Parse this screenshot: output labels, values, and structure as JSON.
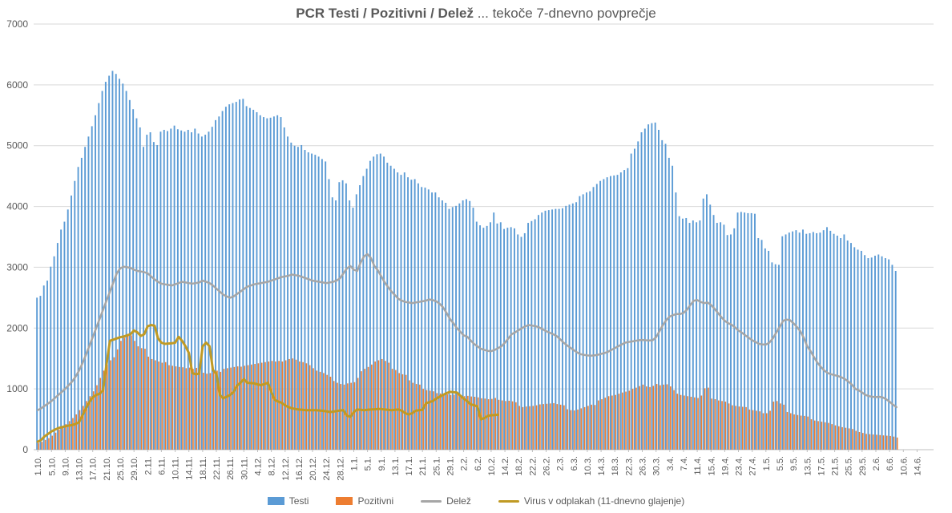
{
  "title": {
    "bold": "PCR Testi / Pozitivni / Delež",
    "regular": " ... tekoče 7-dnevno povprečje"
  },
  "chart_data": {
    "type": "combo",
    "subtype": "daily bars with moving-average lines",
    "x_start_date": "1.10.",
    "x_tick_interval_days": 4,
    "x_tick_labels": [
      "1.10.",
      "5.10.",
      "9.10.",
      "13.10.",
      "17.10.",
      "21.10.",
      "25.10.",
      "29.10.",
      "2.11.",
      "6.11.",
      "10.11.",
      "14.11.",
      "18.11.",
      "22.11.",
      "26.11.",
      "30.11.",
      "4.12.",
      "8.12.",
      "12.12.",
      "16.12.",
      "20.12.",
      "24.12.",
      "28.12.",
      "1.1.",
      "5.1.",
      "9.1.",
      "13.1.",
      "17.1.",
      "21.1.",
      "25.1.",
      "29.1.",
      "2.2.",
      "6.2.",
      "10.2.",
      "14.2.",
      "18.2.",
      "22.2.",
      "26.2.",
      "2.3.",
      "6.3.",
      "10.3.",
      "14.3.",
      "18.3.",
      "22.3.",
      "26.3.",
      "30.3.",
      "3.4.",
      "7.4.",
      "11.4.",
      "15.4.",
      "19.4.",
      "23.4.",
      "27.4.",
      "1.5.",
      "5.5.",
      "9.5.",
      "13.5.",
      "17.5.",
      "21.5.",
      "25.5.",
      "29.5.",
      "2.6.",
      "6.6.",
      "10.6.",
      "14.6."
    ],
    "y_axis": {
      "min": 0,
      "max": 7000,
      "step": 1000,
      "tick_labels": [
        "0",
        "1000",
        "2000",
        "3000",
        "4000",
        "5000",
        "6000",
        "7000"
      ]
    },
    "grid": true,
    "legend_position": "bottom",
    "colors": {
      "testi": "#5B9BD5",
      "pozitivni": "#ED7D31",
      "delez": "#A6A6A6",
      "virus": "#C09A24",
      "gridline": "#D9D9D9",
      "axis": "#BFBFBF",
      "text": "#595959"
    },
    "series": [
      {
        "name": "Testi",
        "type": "bar",
        "color": "#5B9BD5",
        "values": [
          2500,
          2530,
          2700,
          2780,
          3010,
          3180,
          3400,
          3620,
          3750,
          3950,
          4180,
          4420,
          4650,
          4800,
          4980,
          5150,
          5320,
          5500,
          5700,
          5900,
          6050,
          6150,
          6230,
          6180,
          6100,
          6020,
          5900,
          5750,
          5600,
          5450,
          5300,
          4980,
          5180,
          5220,
          5060,
          5010,
          5230,
          5260,
          5240,
          5280,
          5330,
          5270,
          5250,
          5230,
          5260,
          5220,
          5280,
          5200,
          5150,
          5180,
          5230,
          5310,
          5420,
          5480,
          5570,
          5640,
          5680,
          5700,
          5720,
          5760,
          5770,
          5650,
          5620,
          5590,
          5550,
          5500,
          5470,
          5450,
          5460,
          5480,
          5500,
          5470,
          5300,
          5150,
          5050,
          5000,
          4980,
          5010,
          4930,
          4890,
          4870,
          4850,
          4820,
          4780,
          4740,
          4450,
          4150,
          4100,
          4400,
          4430,
          4380,
          4100,
          3980,
          4200,
          4350,
          4500,
          4620,
          4750,
          4820,
          4860,
          4870,
          4820,
          4720,
          4670,
          4620,
          4560,
          4520,
          4560,
          4480,
          4440,
          4450,
          4380,
          4320,
          4310,
          4280,
          4230,
          4230,
          4150,
          4100,
          4060,
          3960,
          3990,
          4010,
          4050,
          4100,
          4120,
          4090,
          3980,
          3750,
          3690,
          3650,
          3680,
          3740,
          3900,
          3720,
          3740,
          3630,
          3650,
          3660,
          3640,
          3540,
          3500,
          3560,
          3730,
          3760,
          3790,
          3860,
          3900,
          3930,
          3940,
          3950,
          3960,
          3960,
          3970,
          4010,
          4030,
          4050,
          4070,
          4170,
          4200,
          4230,
          4250,
          4320,
          4370,
          4420,
          4450,
          4480,
          4500,
          4510,
          4520,
          4560,
          4600,
          4630,
          4870,
          4950,
          5070,
          5220,
          5280,
          5350,
          5370,
          5380,
          5260,
          5090,
          5030,
          4800,
          4670,
          4230,
          3840,
          3800,
          3810,
          3730,
          3770,
          3740,
          3770,
          4130,
          4200,
          4030,
          3860,
          3730,
          3740,
          3700,
          3530,
          3540,
          3640,
          3900,
          3910,
          3900,
          3890,
          3890,
          3880,
          3480,
          3450,
          3310,
          3270,
          3080,
          3050,
          3040,
          3510,
          3540,
          3570,
          3590,
          3610,
          3570,
          3620,
          3550,
          3560,
          3580,
          3560,
          3570,
          3610,
          3660,
          3600,
          3550,
          3520,
          3480,
          3540,
          3440,
          3400,
          3330,
          3290,
          3270,
          3200,
          3150,
          3160,
          3190,
          3210,
          3180,
          3150,
          3130,
          3040,
          2940
        ]
      },
      {
        "name": "Pozitivni",
        "type": "bar",
        "color": "#ED7D31",
        "values": [
          110,
          130,
          160,
          190,
          230,
          280,
          330,
          380,
          420,
          470,
          520,
          580,
          650,
          720,
          800,
          880,
          960,
          1060,
          1180,
          1300,
          1400,
          1470,
          1520,
          1650,
          1790,
          1840,
          1870,
          1880,
          1790,
          1700,
          1670,
          1660,
          1530,
          1490,
          1470,
          1450,
          1430,
          1440,
          1390,
          1380,
          1370,
          1360,
          1355,
          1340,
          1350,
          1330,
          1345,
          1300,
          1265,
          1250,
          1260,
          1290,
          1300,
          1280,
          1330,
          1340,
          1350,
          1360,
          1370,
          1365,
          1380,
          1390,
          1400,
          1410,
          1420,
          1430,
          1440,
          1450,
          1460,
          1450,
          1460,
          1450,
          1470,
          1490,
          1500,
          1480,
          1450,
          1440,
          1420,
          1390,
          1340,
          1300,
          1280,
          1260,
          1230,
          1200,
          1130,
          1100,
          1080,
          1070,
          1090,
          1100,
          1110,
          1180,
          1290,
          1330,
          1360,
          1400,
          1450,
          1470,
          1490,
          1460,
          1430,
          1330,
          1310,
          1260,
          1240,
          1230,
          1140,
          1100,
          1080,
          1070,
          1000,
          980,
          970,
          960,
          930,
          925,
          920,
          910,
          900,
          905,
          910,
          890,
          880,
          885,
          875,
          870,
          860,
          845,
          840,
          830,
          835,
          850,
          820,
          810,
          800,
          805,
          795,
          780,
          720,
          700,
          710,
          715,
          720,
          730,
          745,
          750,
          755,
          760,
          765,
          750,
          740,
          730,
          665,
          650,
          645,
          660,
          680,
          700,
          720,
          740,
          735,
          810,
          830,
          855,
          880,
          890,
          900,
          920,
          940,
          955,
          970,
          1000,
          1020,
          1045,
          1070,
          1040,
          1030,
          1050,
          1080,
          1060,
          1070,
          1075,
          1040,
          980,
          920,
          900,
          890,
          880,
          870,
          860,
          850,
          890,
          1010,
          1020,
          840,
          830,
          810,
          800,
          790,
          760,
          730,
          720,
          710,
          705,
          700,
          660,
          650,
          640,
          630,
          600,
          600,
          640,
          790,
          800,
          760,
          740,
          620,
          600,
          580,
          570,
          560,
          555,
          545,
          500,
          480,
          470,
          460,
          450,
          440,
          420,
          400,
          385,
          370,
          360,
          350,
          340,
          310,
          290,
          275,
          260,
          255,
          250,
          245,
          240,
          235,
          230,
          225,
          215,
          200
        ]
      },
      {
        "name": "Delež",
        "type": "line",
        "color": "#A6A6A6",
        "values": [
          650,
          680,
          720,
          760,
          800,
          850,
          900,
          950,
          1000,
          1060,
          1120,
          1200,
          1300,
          1420,
          1560,
          1700,
          1850,
          2000,
          2150,
          2300,
          2450,
          2600,
          2750,
          2900,
          2980,
          3010,
          3000,
          2990,
          2960,
          2940,
          2930,
          2920,
          2900,
          2850,
          2800,
          2760,
          2730,
          2720,
          2710,
          2700,
          2720,
          2740,
          2760,
          2750,
          2740,
          2730,
          2740,
          2750,
          2780,
          2760,
          2740,
          2700,
          2650,
          2600,
          2550,
          2520,
          2500,
          2520,
          2560,
          2600,
          2640,
          2680,
          2700,
          2720,
          2730,
          2740,
          2750,
          2760,
          2780,
          2800,
          2820,
          2840,
          2850,
          2860,
          2880,
          2870,
          2860,
          2840,
          2820,
          2800,
          2780,
          2770,
          2760,
          2750,
          2740,
          2750,
          2760,
          2780,
          2820,
          2900,
          2980,
          3020,
          2960,
          2940,
          3080,
          3180,
          3215,
          3150,
          3020,
          2950,
          2850,
          2750,
          2675,
          2600,
          2540,
          2480,
          2450,
          2430,
          2420,
          2410,
          2420,
          2430,
          2440,
          2450,
          2470,
          2460,
          2440,
          2400,
          2340,
          2250,
          2150,
          2080,
          2000,
          1940,
          1880,
          1860,
          1800,
          1740,
          1700,
          1660,
          1640,
          1625,
          1620,
          1640,
          1670,
          1700,
          1760,
          1830,
          1900,
          1930,
          1965,
          2000,
          2030,
          2050,
          2040,
          2030,
          2010,
          1980,
          1950,
          1925,
          1900,
          1870,
          1820,
          1765,
          1720,
          1680,
          1640,
          1600,
          1570,
          1560,
          1550,
          1545,
          1550,
          1560,
          1575,
          1590,
          1610,
          1640,
          1670,
          1700,
          1730,
          1760,
          1770,
          1780,
          1790,
          1800,
          1805,
          1800,
          1795,
          1800,
          1850,
          1950,
          2050,
          2130,
          2190,
          2215,
          2230,
          2230,
          2250,
          2300,
          2380,
          2450,
          2460,
          2430,
          2410,
          2420,
          2380,
          2320,
          2250,
          2180,
          2120,
          2080,
          2055,
          2010,
          1960,
          1925,
          1880,
          1840,
          1800,
          1770,
          1740,
          1730,
          1730,
          1760,
          1830,
          1925,
          2020,
          2120,
          2140,
          2130,
          2080,
          2020,
          1950,
          1840,
          1700,
          1620,
          1520,
          1430,
          1360,
          1300,
          1260,
          1240,
          1225,
          1210,
          1190,
          1160,
          1120,
          1070,
          1000,
          975,
          940,
          900,
          880,
          870,
          865,
          870,
          860,
          830,
          790,
          740,
          700
        ]
      },
      {
        "name": "Virus v odplakah (11-dnevno glajenje)",
        "type": "line",
        "color": "#C09A24",
        "values": [
          130,
          160,
          220,
          260,
          300,
          330,
          355,
          370,
          385,
          395,
          405,
          425,
          450,
          560,
          680,
          780,
          860,
          900,
          920,
          975,
          1400,
          1790,
          1810,
          1830,
          1850,
          1860,
          1880,
          1900,
          1960,
          1930,
          1870,
          1900,
          2030,
          2050,
          2040,
          1830,
          1760,
          1740,
          1745,
          1750,
          1760,
          1855,
          1790,
          1700,
          1590,
          1260,
          1240,
          1250,
          1700,
          1760,
          1700,
          1310,
          1250,
          900,
          845,
          870,
          900,
          950,
          1050,
          1100,
          1160,
          1100,
          1095,
          1090,
          1075,
          1060,
          1080,
          1100,
          950,
          820,
          790,
          770,
          730,
          700,
          680,
          670,
          660,
          655,
          650,
          650,
          648,
          650,
          645,
          640,
          630,
          620,
          625,
          635,
          645,
          650,
          560,
          540,
          620,
          660,
          655,
          650,
          655,
          660,
          665,
          670,
          668,
          660,
          655,
          650,
          655,
          660,
          640,
          600,
          580,
          600,
          640,
          650,
          655,
          765,
          780,
          800,
          840,
          870,
          900,
          930,
          950,
          945,
          940,
          890,
          840,
          800,
          745,
          730,
          710,
          500,
          520,
          555,
          565,
          570,
          575
        ]
      }
    ]
  },
  "legend": {
    "labels": [
      "Testi",
      "Pozitivni",
      "Delež",
      "Virus v odplakah (11-dnevno glajenje)"
    ]
  }
}
